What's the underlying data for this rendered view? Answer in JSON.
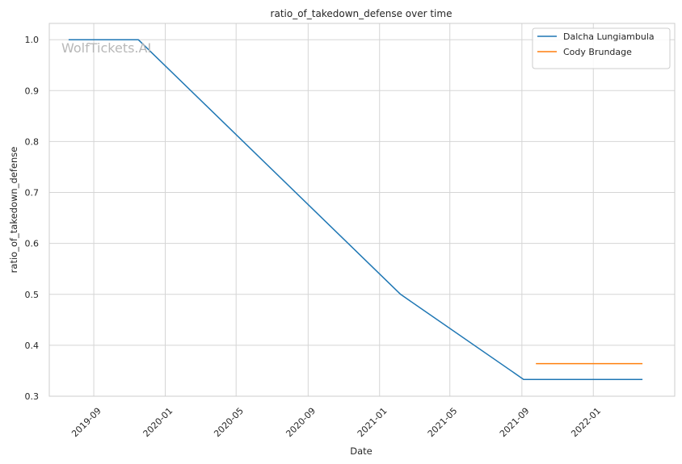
{
  "chart_data": {
    "type": "line",
    "title": "ratio_of_takedown_defense over time",
    "xlabel": "Date",
    "ylabel": "ratio_of_takedown_defense",
    "watermark": "WolfTickets.AI",
    "x_axis_type": "date",
    "xlim": [
      "2019-06-17",
      "2022-05-20"
    ],
    "ylim": [
      0.3,
      1.032
    ],
    "x_ticks": [
      {
        "date": "2019-09-01",
        "label": "2019-09"
      },
      {
        "date": "2020-01-01",
        "label": "2020-01"
      },
      {
        "date": "2020-05-01",
        "label": "2020-05"
      },
      {
        "date": "2020-09-01",
        "label": "2020-09"
      },
      {
        "date": "2021-01-01",
        "label": "2021-01"
      },
      {
        "date": "2021-05-01",
        "label": "2021-05"
      },
      {
        "date": "2021-09-01",
        "label": "2021-09"
      },
      {
        "date": "2022-01-01",
        "label": "2022-01"
      }
    ],
    "y_ticks": [
      {
        "value": 0.3,
        "label": "0.3"
      },
      {
        "value": 0.4,
        "label": "0.4"
      },
      {
        "value": 0.5,
        "label": "0.5"
      },
      {
        "value": 0.6,
        "label": "0.6"
      },
      {
        "value": 0.7,
        "label": "0.7"
      },
      {
        "value": 0.8,
        "label": "0.8"
      },
      {
        "value": 0.9,
        "label": "0.9"
      },
      {
        "value": 1.0,
        "label": "1.0"
      }
    ],
    "grid": true,
    "legend_position": "top-right",
    "series": [
      {
        "name": "Dalcha Lungiambula",
        "color": "#1f77b4",
        "points": [
          {
            "x": "2019-07-20",
            "y": 1.0
          },
          {
            "x": "2019-11-16",
            "y": 1.0
          },
          {
            "x": "2021-02-06",
            "y": 0.5
          },
          {
            "x": "2021-09-04",
            "y": 0.333
          },
          {
            "x": "2022-03-26",
            "y": 0.333
          }
        ]
      },
      {
        "name": "Cody Brundage",
        "color": "#ff7f0e",
        "points": [
          {
            "x": "2021-09-25",
            "y": 0.364
          },
          {
            "x": "2022-03-26",
            "y": 0.364
          }
        ]
      }
    ]
  }
}
